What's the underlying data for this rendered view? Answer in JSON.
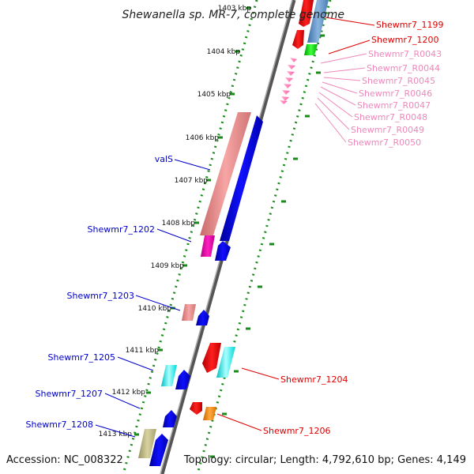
{
  "title": "Shewanella sp. MR-7, complete genome",
  "accession": "Accession: NC_008322",
  "topology": "Topology: circular; Length: 4,792,610 bp; Genes: 4,149",
  "colors": {
    "backbone": "#888888",
    "ticks": "#1a8a1a",
    "forward_label": "#0000cc",
    "reverse_label": "#dd0000",
    "rna_label": "#ee88bb"
  },
  "kbp_labels": [
    "1403 kbp",
    "1404 kbp",
    "1405 kbp",
    "1406 kbp",
    "1407 kbp",
    "1408 kbp",
    "1409 kbp",
    "1410 kbp",
    "1411 kbp",
    "1412 kbp",
    "1413 kbp"
  ],
  "left_labels": [
    "valS",
    "Shewmr7_1202",
    "Shewmr7_1203",
    "Shewmr7_1205",
    "Shewmr7_1207",
    "Shewmr7_1208"
  ],
  "right_labels": [
    "Shewmr7_1199",
    "Shewmr7_1200",
    "Shewmr7_1204",
    "Shewmr7_1206"
  ],
  "rna_labels": [
    "Shewmr7_R0043",
    "Shewmr7_R0044",
    "Shewmr7_R0045",
    "Shewmr7_R0046",
    "Shewmr7_R0047",
    "Shewmr7_R0048",
    "Shewmr7_R0049",
    "Shewmr7_R0050"
  ]
}
